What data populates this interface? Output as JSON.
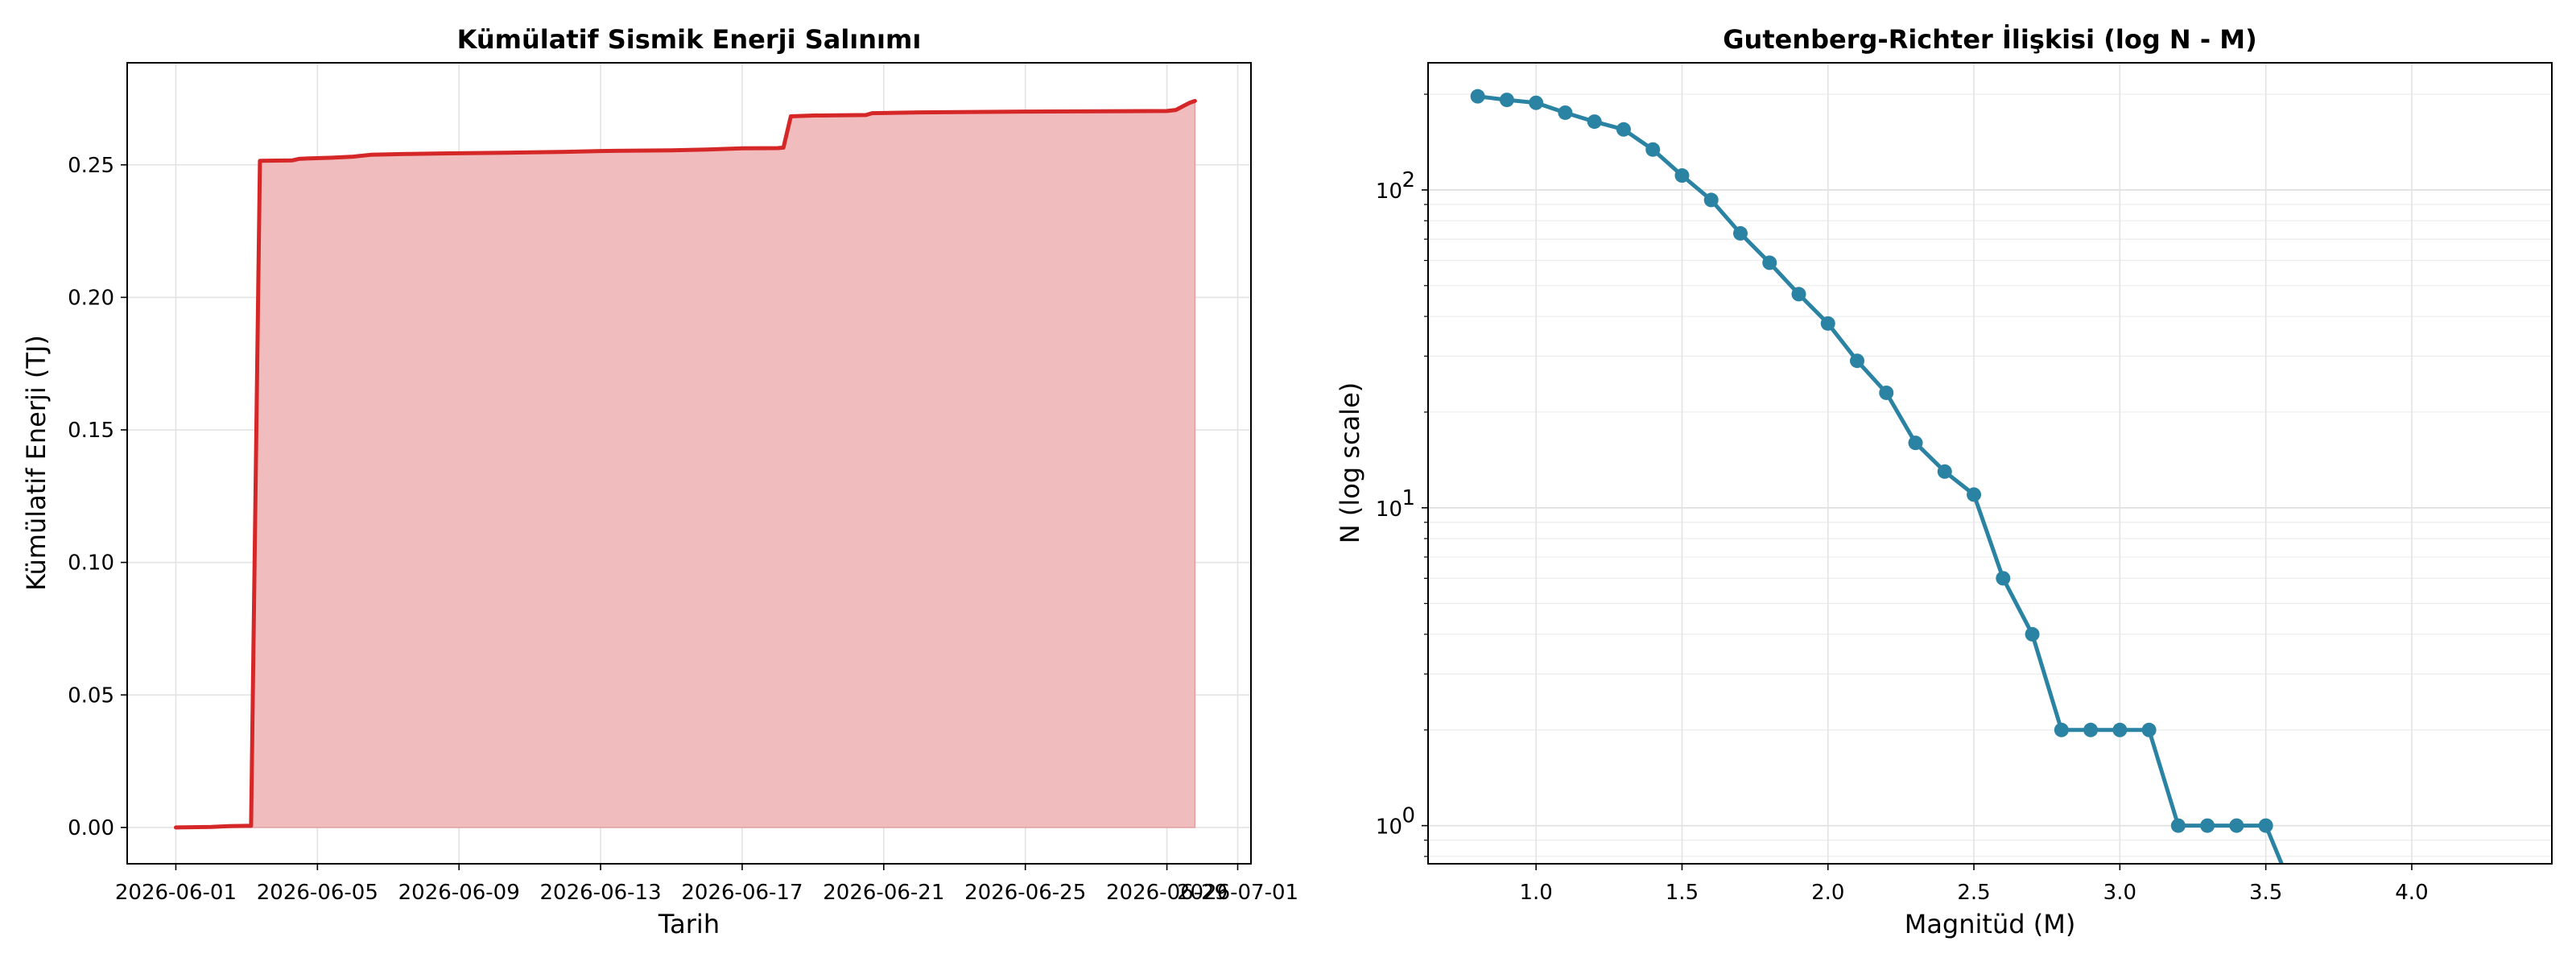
{
  "chart_data": [
    {
      "type": "area",
      "title": "Kümülatif Sismik Enerji Salınımı",
      "xlabel": "Tarih",
      "ylabel": "Kümülatif Enerji (TJ)",
      "x_tick_labels": [
        "2026-06-01",
        "2026-06-05",
        "2026-06-09",
        "2026-06-13",
        "2026-06-17",
        "2026-06-21",
        "2026-06-25",
        "2026-06-29",
        "2026-07-01"
      ],
      "y_tick_labels": [
        "0.00",
        "0.05",
        "0.10",
        "0.15",
        "0.20",
        "0.25"
      ],
      "xlim": [
        "2026-05-30T15:00",
        "2026-07-01T09:00"
      ],
      "ylim": [
        -0.0137,
        0.2885
      ],
      "grid": true,
      "line_color": "#d62728",
      "fill_color": "#f0bcbd",
      "x": [
        "2026-06-01T00:00",
        "2026-06-02T00:00",
        "2026-06-02T12:00",
        "2026-06-03T00:00",
        "2026-06-03T03:00",
        "2026-06-03T09:00",
        "2026-06-04T07:00",
        "2026-06-04T12:00",
        "2026-06-05T10:00",
        "2026-06-06T00:00",
        "2026-06-06T12:00",
        "2026-06-07T12:00",
        "2026-06-08T12:00",
        "2026-06-10T00:00",
        "2026-06-12T00:00",
        "2026-06-13T00:00",
        "2026-06-15T00:00",
        "2026-06-16T00:00",
        "2026-06-17T00:00",
        "2026-06-18T00:00",
        "2026-06-18T04:00",
        "2026-06-18T09:00",
        "2026-06-19T00:00",
        "2026-06-20T12:00",
        "2026-06-20T16:00",
        "2026-06-22T00:00",
        "2026-06-25T00:00",
        "2026-06-29T00:00",
        "2026-06-29T06:00",
        "2026-06-29T15:00",
        "2026-06-29T19:00"
      ],
      "y": [
        0.0,
        0.0002,
        0.0005,
        0.0006,
        0.0006,
        0.2515,
        0.2517,
        0.2523,
        0.2527,
        0.2531,
        0.2538,
        0.2541,
        0.2543,
        0.2545,
        0.2549,
        0.2552,
        0.2555,
        0.2558,
        0.2562,
        0.2563,
        0.2565,
        0.2683,
        0.2686,
        0.2688,
        0.2695,
        0.2698,
        0.2701,
        0.2703,
        0.2707,
        0.2733,
        0.2741
      ]
    },
    {
      "type": "line",
      "title": "Gutenberg-Richter İlişkisi (log N - M)",
      "xlabel": "Magnitüd (M)",
      "ylabel": "N (log scale)",
      "x_tick_labels": [
        "1.0",
        "1.5",
        "2.0",
        "2.5",
        "3.0",
        "3.5",
        "4.0"
      ],
      "y_tick_labels": [
        {
          "base": "10",
          "exp": "0"
        },
        {
          "base": "10",
          "exp": "1"
        },
        {
          "base": "10",
          "exp": "2"
        }
      ],
      "xlim": [
        0.63,
        4.48
      ],
      "ylim_log10": [
        -0.12,
        2.4
      ],
      "y_scale": "log",
      "grid": true,
      "line_color": "#2b83a3",
      "x": [
        0.8,
        0.9,
        1.0,
        1.1,
        1.2,
        1.3,
        1.4,
        1.5,
        1.6,
        1.7,
        1.8,
        1.9,
        2.0,
        2.1,
        2.2,
        2.3,
        2.4,
        2.5,
        2.6,
        2.7,
        2.8,
        2.9,
        3.0,
        3.1,
        3.2,
        3.3,
        3.4,
        3.5,
        3.6
      ],
      "y": [
        197,
        192,
        188,
        175,
        164,
        155,
        134,
        111,
        93,
        73,
        59,
        47,
        38,
        29,
        23,
        16,
        13,
        11,
        6,
        4,
        2,
        2,
        2,
        2,
        1,
        1,
        1,
        1,
        0
      ]
    }
  ]
}
